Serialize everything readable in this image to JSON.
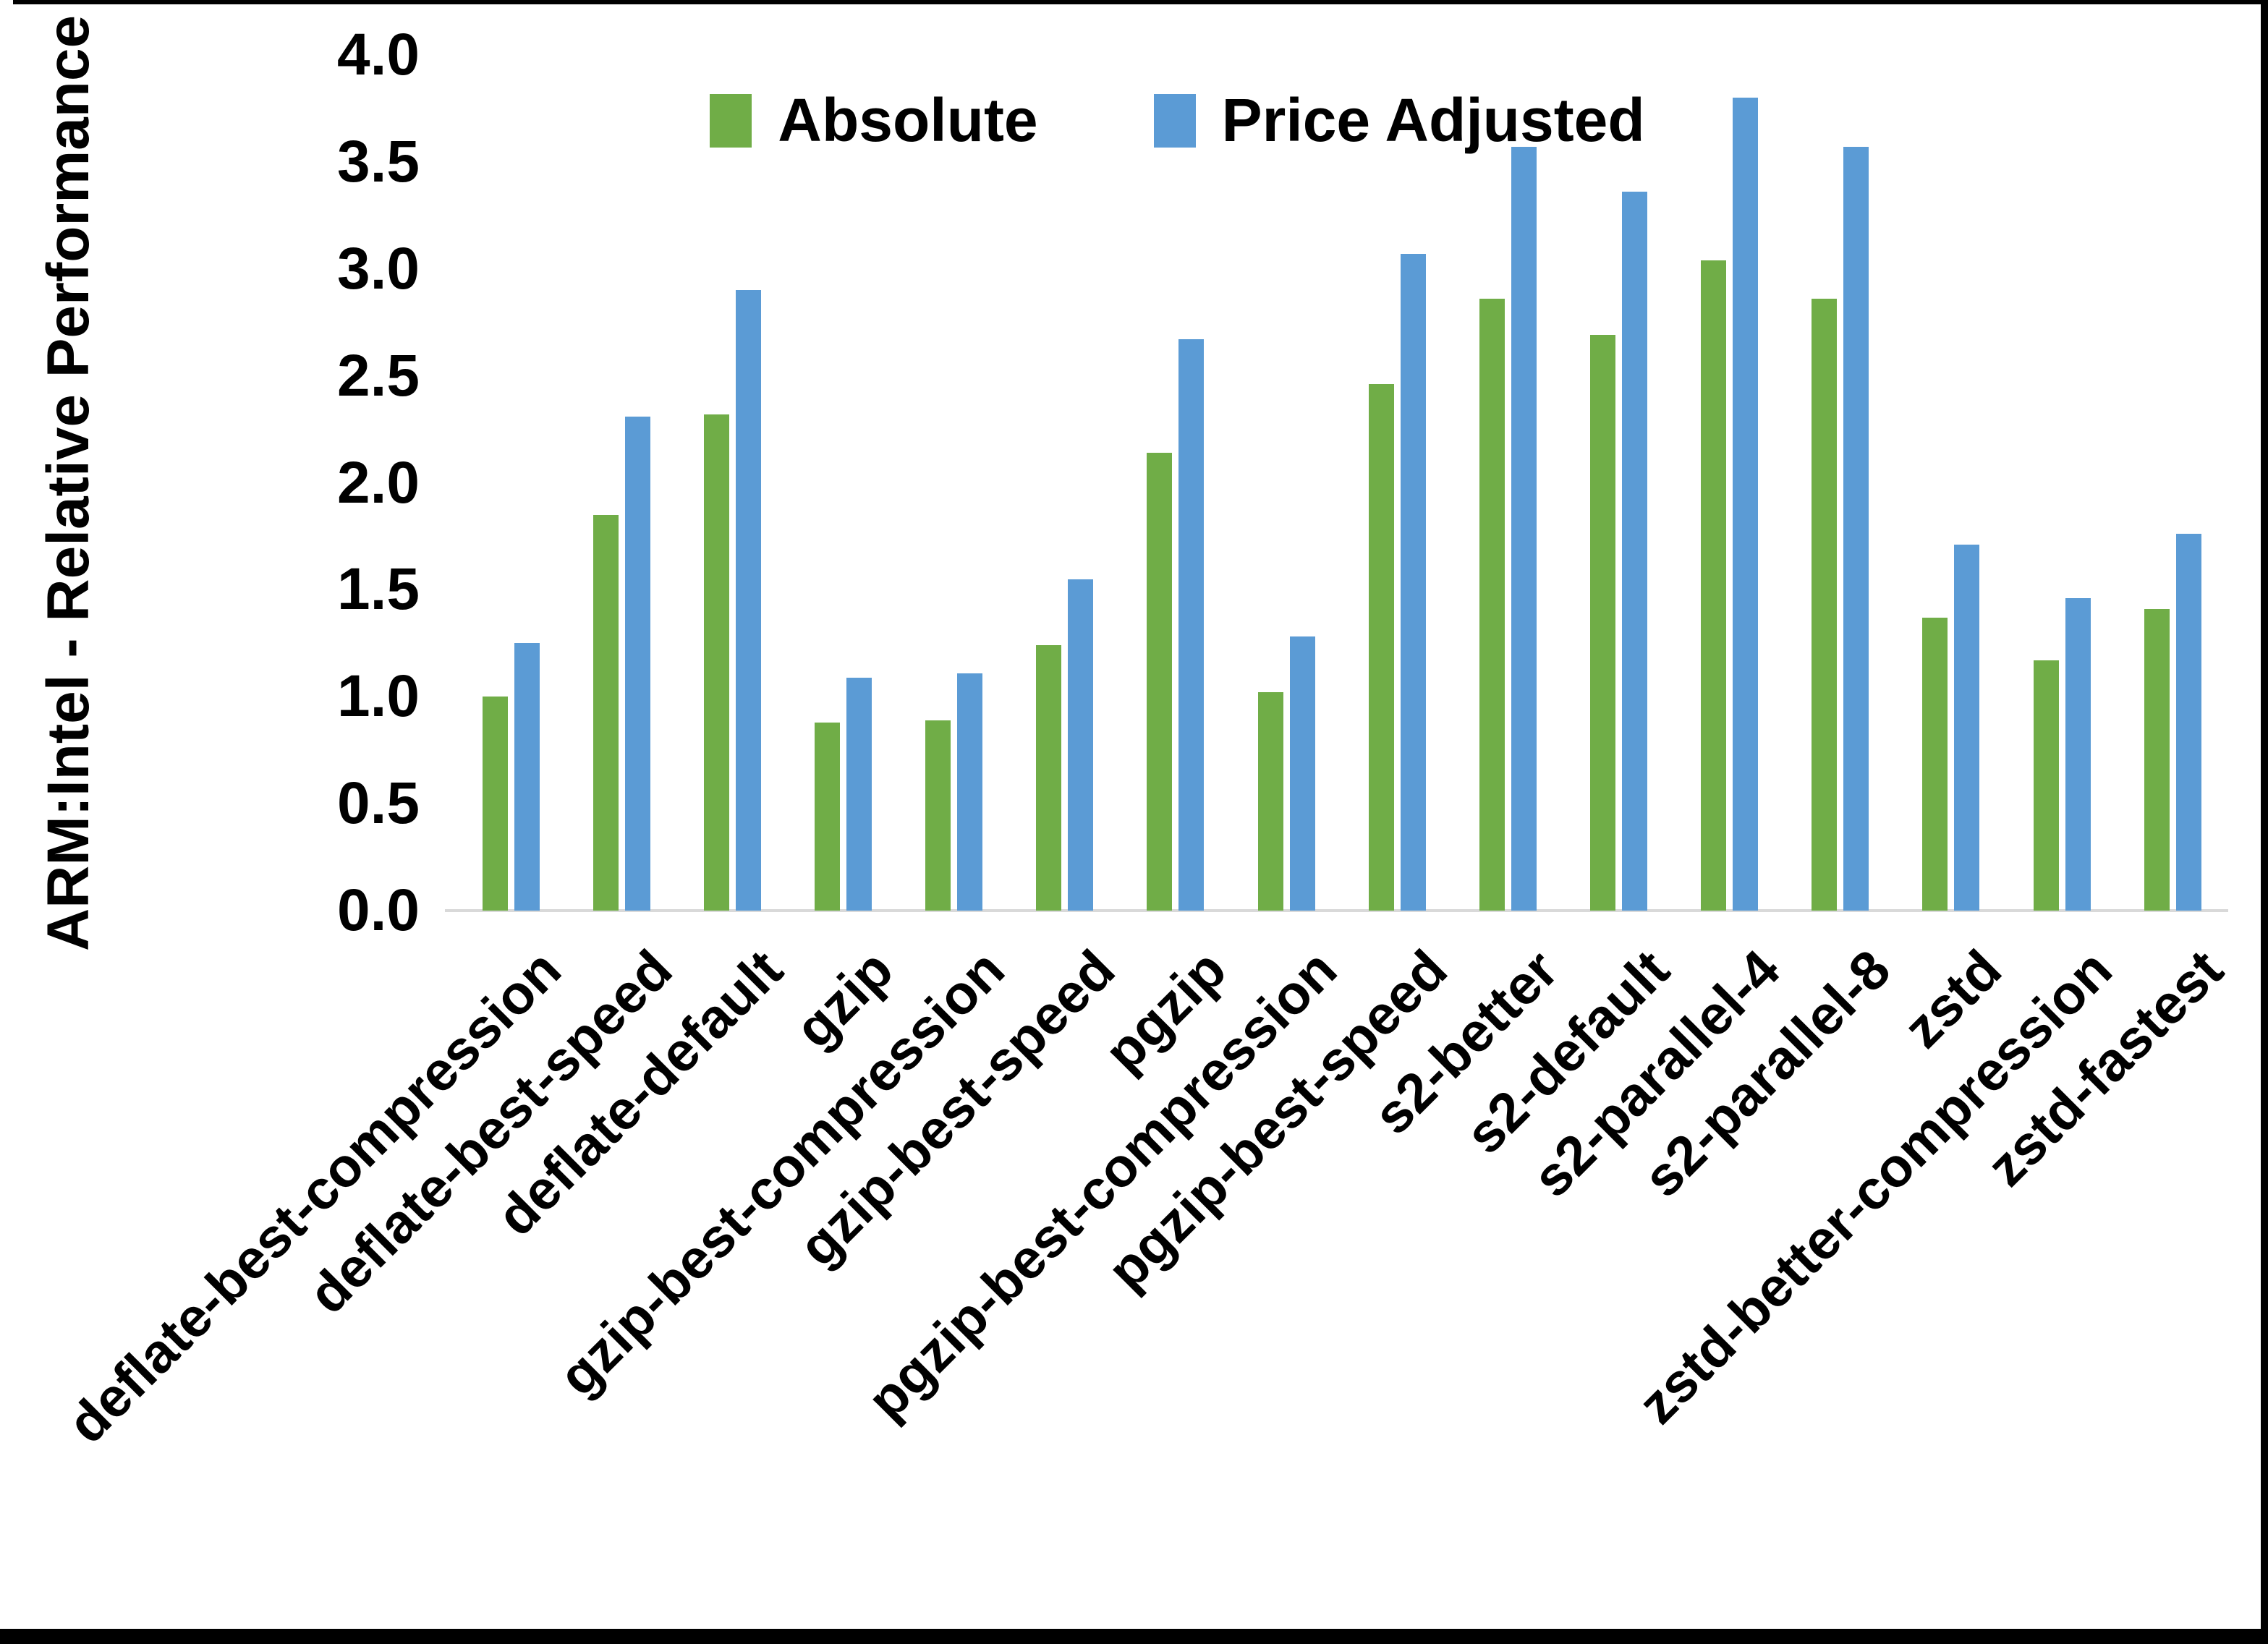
{
  "figure": {
    "background": "#ffffff",
    "border_color": "#000000"
  },
  "chart_data": {
    "type": "bar",
    "title": "",
    "xlabel": "",
    "ylabel": "ARM:Intel - Relative Performance",
    "ylim": [
      0.0,
      4.0
    ],
    "ytick_labels": [
      "0.0",
      "0.5",
      "1.0",
      "1.5",
      "2.0",
      "2.5",
      "3.0",
      "3.5",
      "4.0"
    ],
    "grid": false,
    "legend_position": "top-center",
    "axis_line_color": "#D9D9D9",
    "categories": [
      "deflate-best-compression",
      "deflate-best-speed",
      "deflate-default",
      "gzip",
      "gzip-best-compression",
      "gzip-best-speed",
      "pgzip",
      "pgzip-best-compression",
      "pgzip-best-speed",
      "s2-better",
      "s2-default",
      "s2-parallel-4",
      "s2-parallel-8",
      "zstd",
      "zstd-better-compression",
      "zstd-fastest"
    ],
    "series": [
      {
        "name": "Absolute",
        "color": "#70AD47",
        "values": [
          1.0,
          1.85,
          2.32,
          0.88,
          0.89,
          1.24,
          2.14,
          1.02,
          2.46,
          2.86,
          2.69,
          3.04,
          2.86,
          1.37,
          1.17,
          1.41
        ]
      },
      {
        "name": "Price Adjusted",
        "color": "#5B9BD5",
        "values": [
          1.25,
          2.31,
          2.9,
          1.09,
          1.11,
          1.55,
          2.67,
          1.28,
          3.07,
          3.57,
          3.36,
          3.8,
          3.57,
          1.71,
          1.46,
          1.76
        ]
      }
    ]
  }
}
